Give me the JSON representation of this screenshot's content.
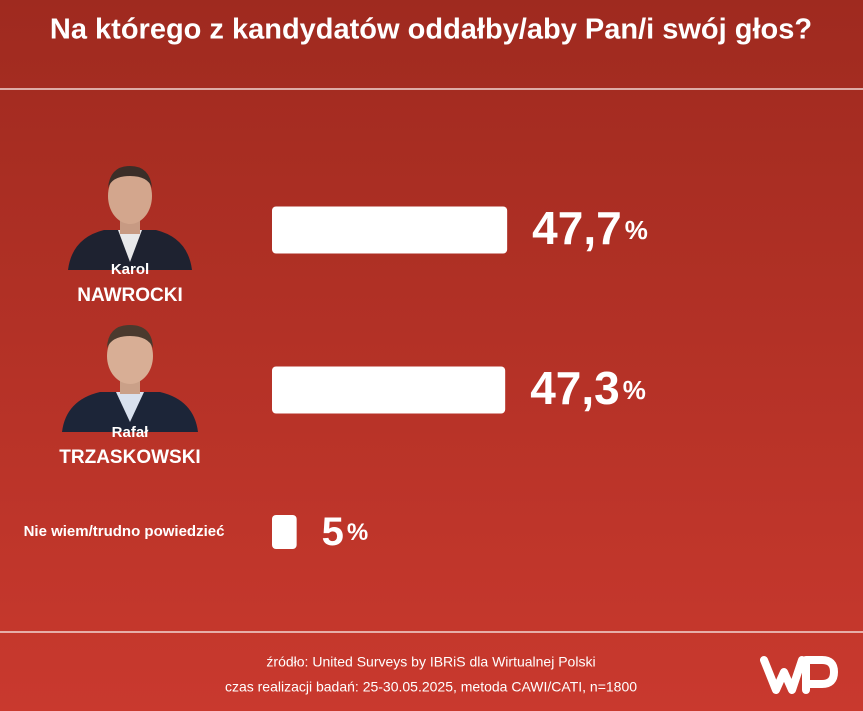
{
  "chart_data": {
    "type": "bar",
    "title": "Na którego z kandydatów oddałby/aby Pan/i swój głos?",
    "categories": [
      [
        "Karol",
        "NAWROCKI"
      ],
      [
        "Rafał",
        "TRZASKOWSKI"
      ],
      [
        "Nie wiem/trudno powiedzieć"
      ]
    ],
    "values": [
      47.7,
      47.3,
      5
    ],
    "value_labels": [
      "47,7%",
      "47,3%",
      "5%"
    ],
    "color": "#ffffff",
    "source": "źródło: United Surveys by IBRiS dla Wirtualnej Polski",
    "note": "czas realizacji badań: 25-30.05.2025, metoda CAWI/CATI, n=1800"
  }
}
